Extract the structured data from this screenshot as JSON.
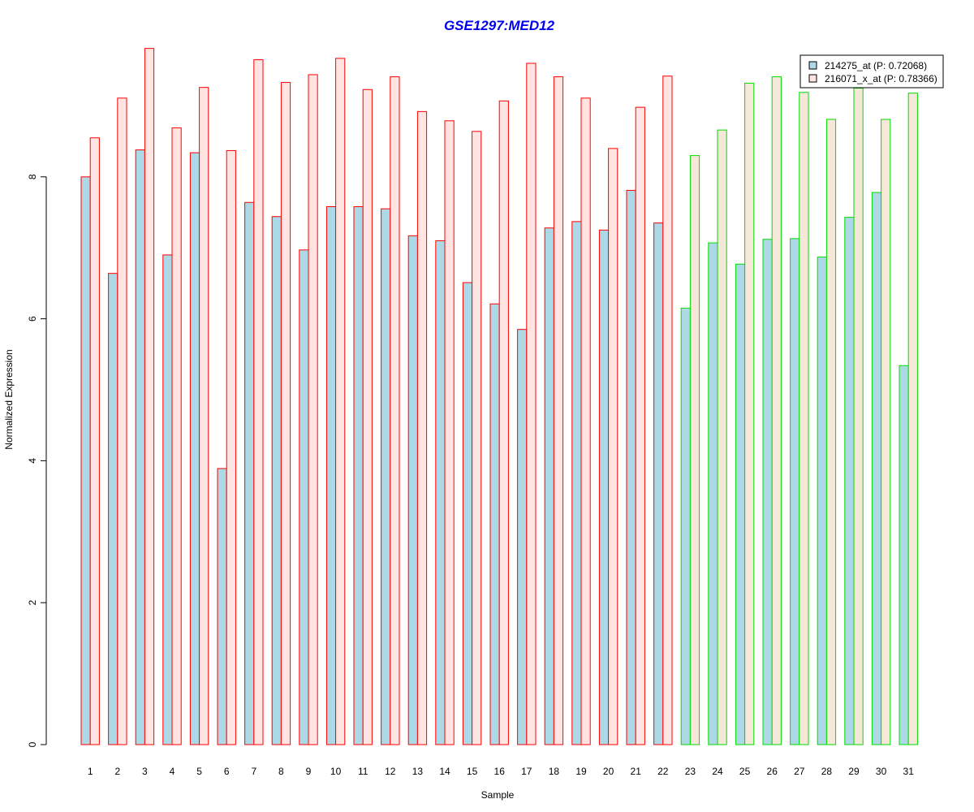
{
  "chart_data": {
    "type": "bar",
    "title": "GSE1297:MED12",
    "xlabel": "Sample",
    "ylabel": "Normalized Expression",
    "ylim": [
      0,
      9.9
    ],
    "yticks": [
      "0",
      "2",
      "4",
      "6",
      "8"
    ],
    "categories": [
      "1",
      "2",
      "3",
      "4",
      "5",
      "6",
      "7",
      "8",
      "9",
      "10",
      "11",
      "12",
      "13",
      "14",
      "15",
      "16",
      "17",
      "18",
      "19",
      "20",
      "21",
      "22",
      "23",
      "24",
      "25",
      "26",
      "27",
      "28",
      "29",
      "30",
      "31"
    ],
    "groups": [
      "red",
      "red",
      "red",
      "red",
      "red",
      "red",
      "red",
      "red",
      "red",
      "red",
      "red",
      "red",
      "red",
      "red",
      "red",
      "red",
      "red",
      "red",
      "red",
      "red",
      "red",
      "red",
      "green",
      "green",
      "green",
      "green",
      "green",
      "green",
      "green",
      "green",
      "green"
    ],
    "series": [
      {
        "name": "214275_at (P: 0.72068)",
        "values": [
          8.0,
          6.64,
          8.38,
          6.9,
          8.34,
          3.89,
          7.64,
          7.44,
          6.97,
          7.58,
          7.58,
          7.55,
          7.17,
          7.1,
          6.51,
          6.21,
          5.85,
          7.28,
          7.37,
          7.25,
          7.81,
          7.35,
          6.15,
          7.07,
          6.77,
          7.12,
          7.13,
          6.87,
          7.43,
          7.78,
          5.34
        ]
      },
      {
        "name": "216071_x_at (P: 0.78366)",
        "values": [
          8.55,
          9.11,
          9.81,
          8.69,
          9.26,
          8.37,
          9.65,
          9.33,
          9.44,
          9.67,
          9.23,
          9.41,
          8.92,
          8.79,
          8.64,
          9.07,
          9.6,
          9.41,
          9.11,
          8.4,
          8.98,
          9.42,
          8.3,
          8.66,
          9.32,
          9.41,
          9.19,
          8.81,
          9.25,
          8.81,
          9.18
        ]
      }
    ],
    "colors": {
      "title": "#0000ee",
      "fill_series1": "#add8e6",
      "fill_series2_red_group": "#ffe4e1",
      "fill_series2_green_group": "#f5e8d8",
      "border_red_group": "#ff0000",
      "border_green_group": "#00dd00",
      "axis": "#000000"
    },
    "legend_position": "top-right"
  }
}
